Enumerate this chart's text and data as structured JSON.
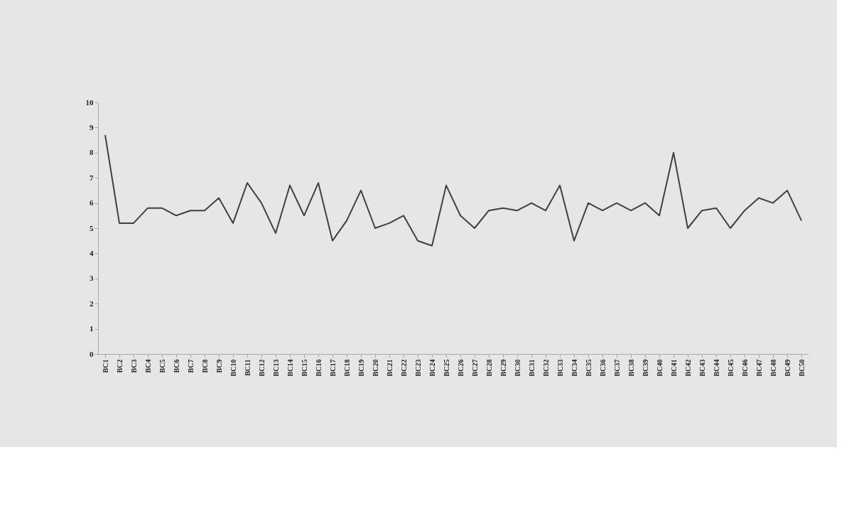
{
  "chart_data": {
    "type": "line",
    "categories": [
      "BC1",
      "BC2",
      "BC3",
      "BC4",
      "BC5",
      "BC6",
      "BC7",
      "BC8",
      "BC9",
      "BC10",
      "BC11",
      "BC12",
      "BC13",
      "BC14",
      "BC15",
      "BC16",
      "BC17",
      "BC18",
      "BC19",
      "BC20",
      "BC21",
      "BC22",
      "BC23",
      "BC24",
      "BC25",
      "BC26",
      "BC27",
      "BC28",
      "BC29",
      "BC30",
      "BC31",
      "BC32",
      "BC33",
      "BC34",
      "BC35",
      "BC36",
      "BC37",
      "BC38",
      "BC39",
      "BC40",
      "BC41",
      "BC42",
      "BC43",
      "BC44",
      "BC45",
      "BC46",
      "BC47",
      "BC48",
      "BC49",
      "BC50"
    ],
    "series": [
      {
        "color": "#404040",
        "values": [
          8.7,
          5.2,
          5.2,
          5.8,
          5.8,
          5.5,
          5.7,
          5.7,
          6.2,
          5.2,
          6.8,
          6.0,
          4.8,
          6.7,
          5.5,
          6.8,
          4.5,
          5.3,
          6.5,
          5.0,
          5.2,
          5.5,
          4.5,
          4.3,
          6.7,
          5.5,
          5.0,
          5.7,
          5.8,
          5.7,
          6.0,
          5.7,
          6.7,
          4.5,
          6.0,
          5.7,
          6.0,
          5.7,
          6.0,
          5.5,
          8.0,
          5.0,
          5.7,
          5.8,
          5.0,
          5.7,
          6.2,
          6.0,
          6.5,
          5.3
        ]
      }
    ],
    "ylim": [
      0,
      10
    ],
    "yticks": [
      0,
      1,
      2,
      3,
      4,
      5,
      6,
      7,
      8,
      9,
      10
    ],
    "grid": false,
    "marker": "none",
    "line_style": "solid"
  }
}
